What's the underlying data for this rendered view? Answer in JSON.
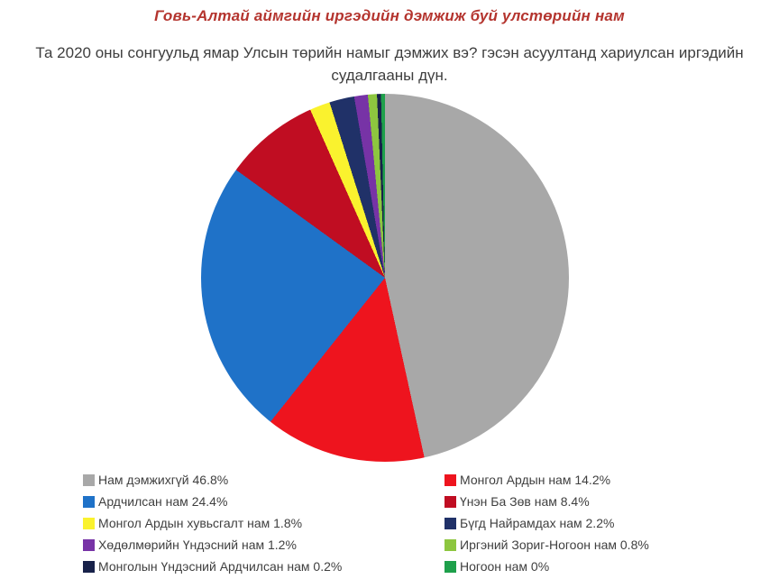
{
  "title": "Говь-Алтай аймгийн иргэдийн дэмжиж буй улстөрийн нам",
  "subtitle": "Та 2020 оны сонгуульд ямар Улсын төрийн намыг дэмжих вэ? гэсэн асуултанд хариулсан иргэдийн судалгааны дүн.",
  "colors": {
    "title_text": "#b4342e",
    "body_text": "#3e3e3e",
    "background": "#ffffff"
  },
  "chart_data": {
    "type": "pie",
    "title": "Говь-Алтай аймгийн иргэдийн дэмжиж буй улстөрийн нам",
    "subtitle": "Та 2020 оны сонгуульд ямар Улсын төрийн намыг дэмжих вэ? гэсэн асуултанд хариулсан иргэдийн судалгааны дүн.",
    "direction": "clockwise",
    "start_angle_deg": 0,
    "legend_position": "bottom-two-columns",
    "grid": false,
    "segments": [
      {
        "name": "Нам дэмжихгүй",
        "value": 46.8,
        "color": "#a8a8a8",
        "legend_label": "Нам дэмжихгүй 46.8%"
      },
      {
        "name": "Монгол Ардын нам",
        "value": 14.2,
        "color": "#ee141e",
        "legend_label": "Монгол Ардын нам 14.2%"
      },
      {
        "name": "Ардчилсан нам",
        "value": 24.4,
        "color": "#1f72c8",
        "legend_label": "Ардчилсан нам 24.4%"
      },
      {
        "name": "Үнэн Ба Зөв нам",
        "value": 8.4,
        "color": "#c00d22",
        "legend_label": "Үнэн Ба Зөв нам 8.4%"
      },
      {
        "name": "Монгол Ардын хувьсгалт нам",
        "value": 1.8,
        "color": "#faf22e",
        "legend_label": "Монгол Ардын хувьсгалт нам 1.8%"
      },
      {
        "name": "Бүгд Найрамдах нам",
        "value": 2.2,
        "color": "#203168",
        "legend_label": "Бүгд Найрамдах нам 2.2%"
      },
      {
        "name": "Хөдөлмөрийн Үндэсний нам",
        "value": 1.2,
        "color": "#7733a6",
        "legend_label": "Хөдөлмөрийн Үндэсний нам 1.2%"
      },
      {
        "name": "Иргэний Зориг-Ногоон нам",
        "value": 0.8,
        "color": "#8dc63f",
        "legend_label": "Иргэний Зориг-Ногоон нам 0.8%"
      },
      {
        "name": "Монголын Үндэсний Ардчилсан нам",
        "value": 0.2,
        "color": "#18224a",
        "legend_label": "Монголын Үндэсний Ардчилсан нам 0.2%"
      },
      {
        "name": "Ногоон нам",
        "value": 0,
        "color": "#1ea04b",
        "legend_label": "Ногоон нам 0%"
      }
    ]
  }
}
